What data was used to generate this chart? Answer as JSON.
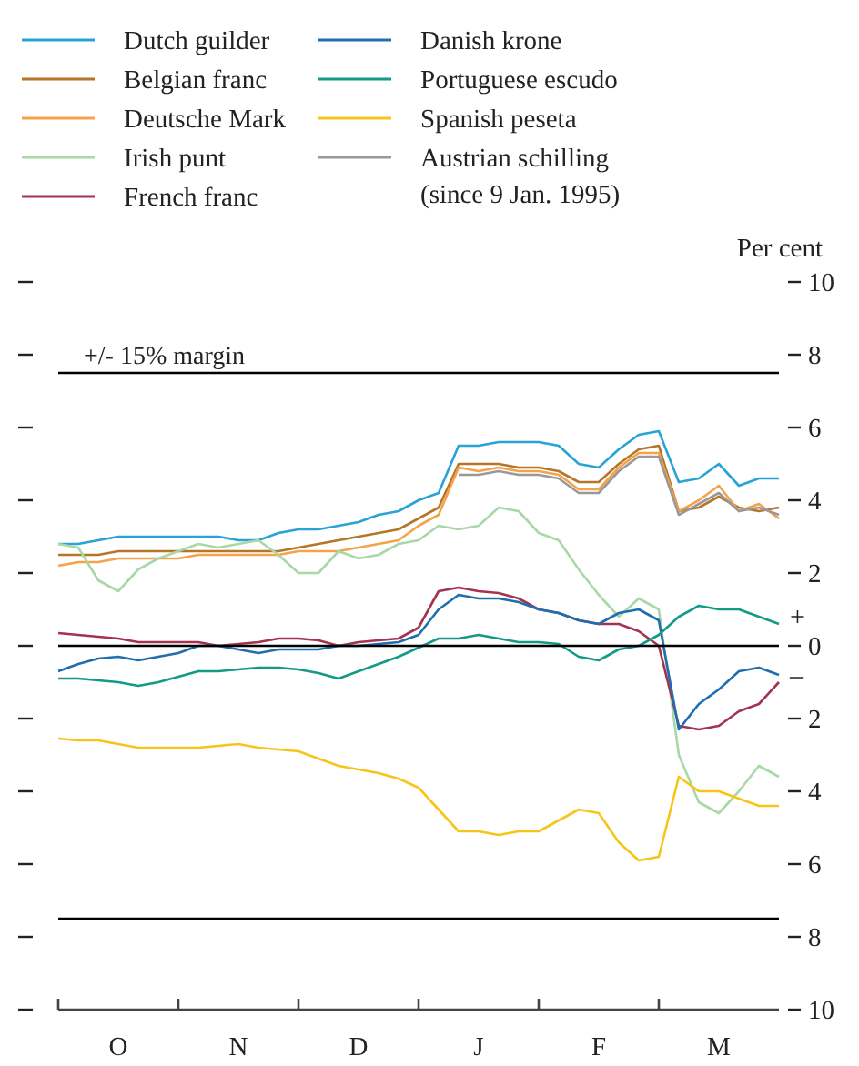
{
  "chart_data": {
    "type": "line",
    "ylabel": "Per cent",
    "categories": [
      null,
      null,
      null,
      "O",
      null,
      null,
      null,
      null,
      null,
      "N",
      null,
      null,
      null,
      null,
      null,
      "D",
      null,
      null,
      null,
      null,
      null,
      "J",
      null,
      null,
      null,
      null,
      null,
      "F",
      null,
      null,
      null,
      null,
      null,
      "M",
      null,
      null,
      null
    ],
    "series": [
      {
        "name": "Dutch guilder",
        "color": "#29a3d6",
        "values": [
          2.8,
          2.8,
          2.9,
          3.0,
          3.0,
          3.0,
          3.0,
          3.0,
          3.0,
          2.9,
          2.9,
          3.1,
          3.2,
          3.2,
          3.3,
          3.4,
          3.6,
          3.7,
          4.0,
          4.2,
          5.5,
          5.5,
          5.6,
          5.6,
          5.6,
          5.5,
          5.0,
          4.9,
          5.4,
          5.8,
          5.9,
          4.5,
          4.6,
          5.0,
          4.4,
          4.6,
          4.6
        ]
      },
      {
        "name": "Belgian franc",
        "color": "#b5762a",
        "values": [
          2.5,
          2.5,
          2.5,
          2.6,
          2.6,
          2.6,
          2.6,
          2.6,
          2.6,
          2.6,
          2.6,
          2.6,
          2.7,
          2.8,
          2.9,
          3.0,
          3.1,
          3.2,
          3.5,
          3.8,
          5.0,
          5.0,
          5.0,
          4.9,
          4.9,
          4.8,
          4.5,
          4.5,
          5.0,
          5.4,
          5.5,
          3.7,
          3.8,
          4.1,
          3.8,
          3.7,
          3.8
        ]
      },
      {
        "name": "Deutsche Mark",
        "color": "#f5a24a",
        "values": [
          2.2,
          2.3,
          2.3,
          2.4,
          2.4,
          2.4,
          2.4,
          2.5,
          2.5,
          2.5,
          2.5,
          2.5,
          2.6,
          2.6,
          2.6,
          2.7,
          2.8,
          2.9,
          3.3,
          3.6,
          4.9,
          4.8,
          4.9,
          4.8,
          4.8,
          4.7,
          4.3,
          4.3,
          4.9,
          5.3,
          5.3,
          3.7,
          4.0,
          4.4,
          3.7,
          3.9,
          3.5
        ]
      },
      {
        "name": "Irish punt",
        "color": "#a8d8a8",
        "values": [
          2.8,
          2.7,
          1.8,
          1.5,
          2.1,
          2.4,
          2.6,
          2.8,
          2.7,
          2.8,
          2.9,
          2.5,
          2.0,
          2.0,
          2.6,
          2.4,
          2.5,
          2.8,
          2.9,
          3.3,
          3.2,
          3.3,
          3.8,
          3.7,
          3.1,
          2.9,
          2.1,
          1.4,
          0.8,
          1.3,
          1.0,
          -3.0,
          -4.3,
          -4.6,
          -4.0,
          -3.3,
          -3.6
        ]
      },
      {
        "name": "French franc",
        "color": "#a3334f",
        "values": [
          0.35,
          0.3,
          0.25,
          0.2,
          0.1,
          0.1,
          0.1,
          0.1,
          0.0,
          0.05,
          0.1,
          0.2,
          0.2,
          0.15,
          0.0,
          0.1,
          0.15,
          0.2,
          0.5,
          1.5,
          1.6,
          1.5,
          1.45,
          1.3,
          1.0,
          0.9,
          0.7,
          0.6,
          0.6,
          0.4,
          0.0,
          -2.2,
          -2.3,
          -2.2,
          -1.8,
          -1.6,
          -1.0
        ]
      },
      {
        "name": "Danish krone",
        "color": "#1f6fb0",
        "values": [
          -0.7,
          -0.5,
          -0.35,
          -0.3,
          -0.4,
          -0.3,
          -0.2,
          0.0,
          0.0,
          -0.1,
          -0.2,
          -0.1,
          -0.1,
          -0.1,
          0.0,
          0.0,
          0.05,
          0.1,
          0.3,
          1.0,
          1.4,
          1.3,
          1.3,
          1.2,
          1.0,
          0.9,
          0.7,
          0.6,
          0.9,
          1.0,
          0.7,
          -2.3,
          -1.6,
          -1.2,
          -0.7,
          -0.6,
          -0.8
        ]
      },
      {
        "name": "Portuguese escudo",
        "color": "#139a86",
        "values": [
          -0.9,
          -0.9,
          -0.95,
          -1.0,
          -1.1,
          -1.0,
          -0.85,
          -0.7,
          -0.7,
          -0.65,
          -0.6,
          -0.6,
          -0.65,
          -0.75,
          -0.9,
          -0.7,
          -0.5,
          -0.3,
          -0.05,
          0.2,
          0.2,
          0.3,
          0.2,
          0.1,
          0.1,
          0.05,
          -0.3,
          -0.4,
          -0.1,
          0.0,
          0.3,
          0.8,
          1.1,
          1.0,
          1.0,
          0.8,
          0.6
        ]
      },
      {
        "name": "Spanish peseta",
        "color": "#f7c51a",
        "values": [
          -2.55,
          -2.6,
          -2.6,
          -2.7,
          -2.8,
          -2.8,
          -2.8,
          -2.8,
          -2.75,
          -2.7,
          -2.8,
          -2.85,
          -2.9,
          -3.1,
          -3.3,
          -3.4,
          -3.5,
          -3.65,
          -3.9,
          -4.5,
          -5.1,
          -5.1,
          -5.2,
          -5.1,
          -5.1,
          -4.8,
          -4.5,
          -4.6,
          -5.4,
          -5.9,
          -5.8,
          -3.6,
          -4.0,
          -4.0,
          -4.2,
          -4.4,
          -4.4
        ]
      },
      {
        "name": "Austrian  schilling\n(since 9 Jan. 1995)",
        "color": "#999999",
        "values": [
          null,
          null,
          null,
          null,
          null,
          null,
          null,
          null,
          null,
          null,
          null,
          null,
          null,
          null,
          null,
          null,
          null,
          null,
          null,
          null,
          4.7,
          4.7,
          4.8,
          4.7,
          4.7,
          4.6,
          4.2,
          4.2,
          4.8,
          5.2,
          5.2,
          3.6,
          3.9,
          4.2,
          3.7,
          3.8,
          3.6
        ]
      }
    ],
    "ylim": [
      -10,
      10
    ],
    "yticks": [
      {
        "value": -10,
        "label": "10"
      },
      {
        "value": -8,
        "label": "8"
      },
      {
        "value": -6,
        "label": "6"
      },
      {
        "value": -4,
        "label": "4"
      },
      {
        "value": -2,
        "label": "2"
      },
      0,
      2,
      4,
      6,
      8,
      10
    ],
    "ref_lines": [
      {
        "axis": "y",
        "value": 0,
        "color": "#000000"
      },
      {
        "axis": "y",
        "value": 7.5,
        "label": "+/- 15% margin",
        "color": "#000000"
      },
      {
        "axis": "y",
        "value": -7.5,
        "color": "#000000"
      }
    ],
    "annotations": [
      "+",
      "–"
    ],
    "legend": "top left",
    "grid": false,
    "marker": "none",
    "line_style": "solid"
  }
}
